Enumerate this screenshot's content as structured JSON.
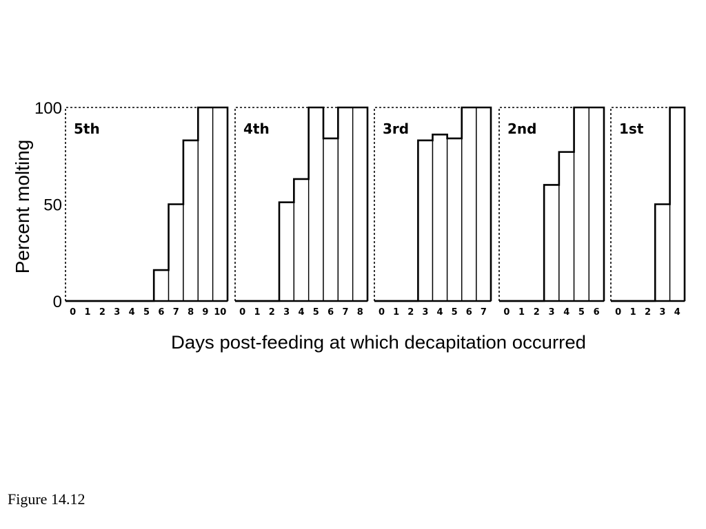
{
  "caption": "Figure 14.12",
  "chart_data": {
    "type": "bar",
    "ylabel": "Percent molting",
    "xlabel": "Days post-feeding at which decapitation occurred",
    "ylim": [
      0,
      100
    ],
    "yticks": [
      "0",
      "50",
      "100"
    ],
    "panels": [
      {
        "label": "5th",
        "categories": [
          "0",
          "1",
          "2",
          "3",
          "4",
          "5",
          "6",
          "7",
          "8",
          "9",
          "10"
        ],
        "values": [
          0,
          0,
          0,
          0,
          0,
          0,
          16,
          50,
          83,
          100,
          100
        ]
      },
      {
        "label": "4th",
        "categories": [
          "0",
          "1",
          "2",
          "3",
          "4",
          "5",
          "6",
          "7",
          "8"
        ],
        "values": [
          0,
          0,
          0,
          51,
          63,
          100,
          84,
          100,
          100
        ]
      },
      {
        "label": "3rd",
        "categories": [
          "0",
          "1",
          "2",
          "3",
          "4",
          "5",
          "6",
          "7"
        ],
        "values": [
          0,
          0,
          0,
          83,
          86,
          84,
          100,
          100
        ]
      },
      {
        "label": "2nd",
        "categories": [
          "0",
          "1",
          "2",
          "3",
          "4",
          "5",
          "6"
        ],
        "values": [
          0,
          0,
          0,
          60,
          77,
          100,
          100
        ]
      },
      {
        "label": "1st",
        "categories": [
          "0",
          "1",
          "2",
          "3",
          "4"
        ],
        "values": [
          0,
          0,
          0,
          50,
          100
        ]
      }
    ]
  }
}
